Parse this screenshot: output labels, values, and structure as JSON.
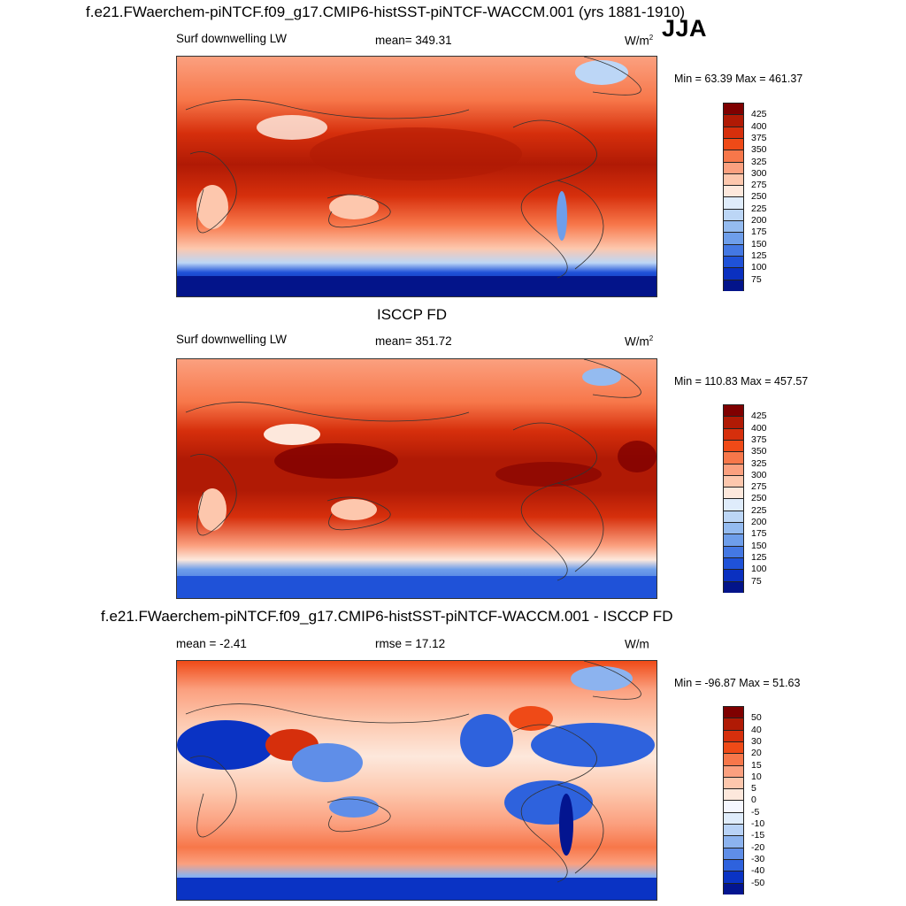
{
  "season": "JJA",
  "panels": [
    {
      "title": "f.e21.FWaerchem-piNTCF.f09_g17.CMIP6-histSST-piNTCF-WACCM.001 (yrs 1881-1910)",
      "left_label": "Surf downwelling LW",
      "center_label": "mean= 349.31",
      "units": "W/m",
      "units_sup": "2",
      "minmax": "Min =  63.39 Max = 461.37",
      "colorbar": {
        "labels": [
          "425",
          "400",
          "375",
          "350",
          "325",
          "300",
          "275",
          "250",
          "225",
          "200",
          "175",
          "150",
          "125",
          "100",
          "75"
        ],
        "colors": [
          "#7f0000",
          "#b01a05",
          "#d62f0c",
          "#ef4a17",
          "#f7774a",
          "#fba07f",
          "#fdc7ad",
          "#fde8dc",
          "#dfecfb",
          "#bcd6f6",
          "#94bbf0",
          "#6e9eea",
          "#4478e3",
          "#1f52d8",
          "#0a30c0",
          "#03148a"
        ]
      }
    },
    {
      "title": "ISCCP FD",
      "left_label": "Surf downwelling LW",
      "center_label": "mean= 351.72",
      "units": "W/m",
      "units_sup": "2",
      "minmax": "Min = 110.83 Max = 457.57",
      "colorbar": {
        "labels": [
          "425",
          "400",
          "375",
          "350",
          "325",
          "300",
          "275",
          "250",
          "225",
          "200",
          "175",
          "150",
          "125",
          "100",
          "75"
        ],
        "colors": [
          "#7f0000",
          "#b01a05",
          "#d62f0c",
          "#ef4a17",
          "#f7774a",
          "#fba07f",
          "#fdc7ad",
          "#fde8dc",
          "#dfecfb",
          "#bcd6f6",
          "#94bbf0",
          "#6e9eea",
          "#4478e3",
          "#1f52d8",
          "#0a30c0",
          "#03148a"
        ]
      }
    },
    {
      "title": "f.e21.FWaerchem-piNTCF.f09_g17.CMIP6-histSST-piNTCF-WACCM.001 - ISCCP FD",
      "left_label": "mean =  -2.41",
      "center_label": "rmse =  17.12",
      "units": "W/m",
      "units_sup": "",
      "minmax": "Min = -96.87 Max =  51.63",
      "colorbar": {
        "labels": [
          "50",
          "40",
          "30",
          "20",
          "15",
          "10",
          "5",
          "0",
          "-5",
          "-10",
          "-15",
          "-20",
          "-30",
          "-40",
          "-50"
        ],
        "colors": [
          "#7f0000",
          "#b01a05",
          "#d62f0c",
          "#ef4a17",
          "#f7774a",
          "#fba07f",
          "#fdc7ad",
          "#fde8dc",
          "#f5f7ff",
          "#dfecfb",
          "#b8d2f6",
          "#8cb3ef",
          "#5f8ee8",
          "#2e62dd",
          "#0a33c4",
          "#031590"
        ]
      }
    }
  ]
}
